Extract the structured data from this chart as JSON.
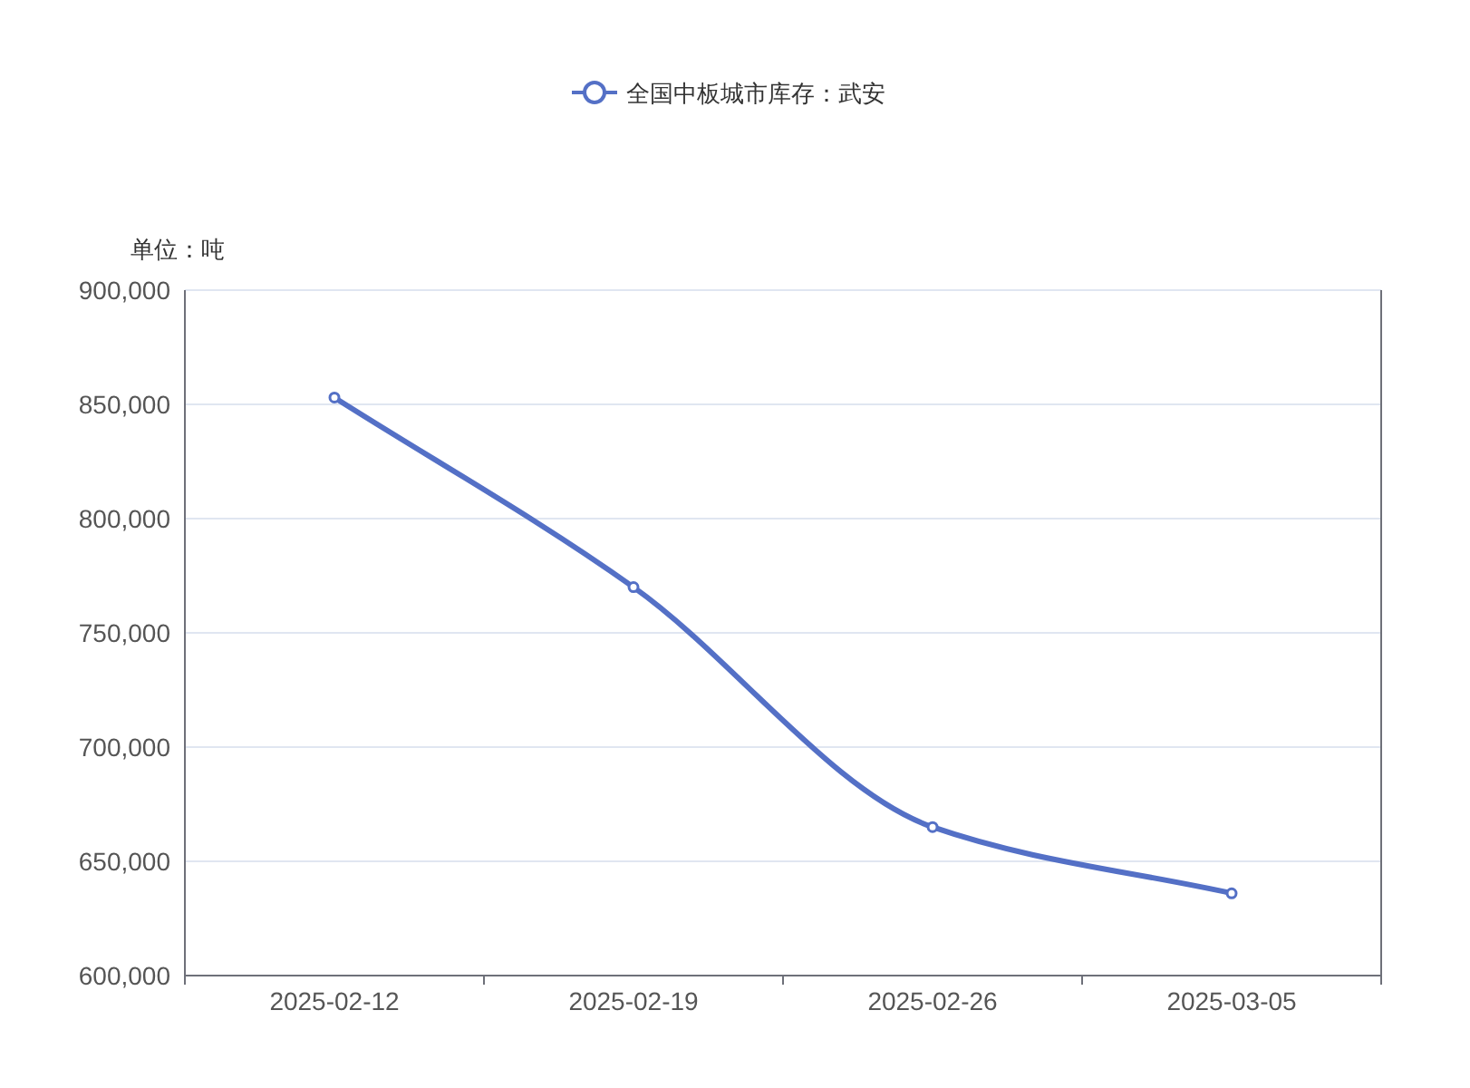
{
  "chart_data": {
    "type": "line",
    "ylabel": "单位：吨",
    "categories": [
      "2025-02-12",
      "2025-02-19",
      "2025-02-26",
      "2025-03-05"
    ],
    "series": [
      {
        "name": "全国中板城市库存：武安",
        "color": "#5470c6",
        "values": [
          853000,
          770000,
          665000,
          636000
        ]
      }
    ],
    "ylim": [
      600000,
      900000
    ],
    "yticks": [
      {
        "value": 600000,
        "label": "600,000"
      },
      {
        "value": 650000,
        "label": "650,000"
      },
      {
        "value": 700000,
        "label": "700,000"
      },
      {
        "value": 750000,
        "label": "750,000"
      },
      {
        "value": 800000,
        "label": "800,000"
      },
      {
        "value": 850000,
        "label": "850,000"
      },
      {
        "value": 900000,
        "label": "900,000"
      }
    ],
    "grid": "y",
    "legend": "top",
    "marker": "circle"
  }
}
